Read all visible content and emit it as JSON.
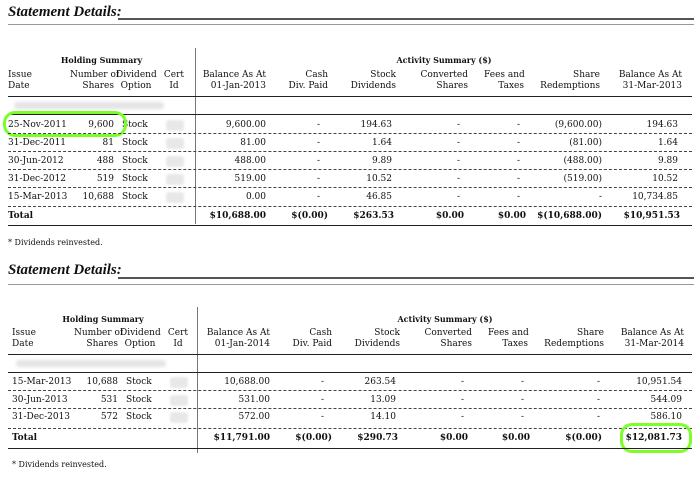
{
  "statements": [
    {
      "title": "Statement Details:",
      "group_holding": "Holding Summary",
      "group_activity": "Activity Summary ($)",
      "headers": {
        "issue": [
          "Issue",
          "Date"
        ],
        "shares": [
          "Number of",
          "Shares"
        ],
        "option": [
          "Dividend",
          "Option"
        ],
        "cert": [
          "Cert",
          "Id"
        ],
        "balance_start": [
          "Balance As At",
          "01-Jan-2013"
        ],
        "cash": [
          "Cash",
          "Div. Paid"
        ],
        "stock_div": [
          "Stock",
          "Dividends"
        ],
        "converted": [
          "Converted",
          "Shares"
        ],
        "fees": [
          "Fees and",
          "Taxes"
        ],
        "redemptions": [
          "Share",
          "Redemptions"
        ],
        "balance_end": [
          "Balance As At",
          "31-Mar-2013"
        ]
      },
      "rows": [
        {
          "date": "25-Nov-2011",
          "shares": "9,600",
          "option": "Stock",
          "balance_start": "9,600.00",
          "cash": "-",
          "stock_div": "194.63",
          "converted": "-",
          "fees": "-",
          "redemptions": "(9,600.00)",
          "balance_end": "194.63"
        },
        {
          "date": "31-Dec-2011",
          "shares": "81",
          "option": "Stock",
          "balance_start": "81.00",
          "cash": "-",
          "stock_div": "1.64",
          "converted": "-",
          "fees": "-",
          "redemptions": "(81.00)",
          "balance_end": "1.64"
        },
        {
          "date": "30-Jun-2012",
          "shares": "488",
          "option": "Stock",
          "balance_start": "488.00",
          "cash": "-",
          "stock_div": "9.89",
          "converted": "-",
          "fees": "-",
          "redemptions": "(488.00)",
          "balance_end": "9.89"
        },
        {
          "date": "31-Dec-2012",
          "shares": "519",
          "option": "Stock",
          "balance_start": "519.00",
          "cash": "-",
          "stock_div": "10.52",
          "converted": "-",
          "fees": "-",
          "redemptions": "(519.00)",
          "balance_end": "10.52"
        },
        {
          "date": "15-Mar-2013",
          "shares": "10,688",
          "option": "Stock",
          "balance_start": "0.00",
          "cash": "-",
          "stock_div": "46.85",
          "converted": "-",
          "fees": "-",
          "redemptions": "-",
          "balance_end": "10,734.85"
        }
      ],
      "total": {
        "label": "Total",
        "balance_start": "$10,688.00",
        "cash": "$(0.00)",
        "stock_div": "$263.53",
        "converted": "$0.00",
        "fees": "$0.00",
        "redemptions": "$(10,688.00)",
        "balance_end": "$10,951.53"
      },
      "footnote": "* Dividends reinvested."
    },
    {
      "title": "Statement Details:",
      "group_holding": "Holding Summary",
      "group_activity": "Activity Summary ($)",
      "headers": {
        "issue": [
          "Issue",
          "Date"
        ],
        "shares": [
          "Number of",
          "Shares"
        ],
        "option": [
          "Dividend",
          "Option"
        ],
        "cert": [
          "Cert",
          "Id"
        ],
        "balance_start": [
          "Balance As At",
          "01-Jan-2014"
        ],
        "cash": [
          "Cash",
          "Div. Paid"
        ],
        "stock_div": [
          "Stock",
          "Dividends"
        ],
        "converted": [
          "Converted",
          "Shares"
        ],
        "fees": [
          "Fees and",
          "Taxes"
        ],
        "redemptions": [
          "Share",
          "Redemptions"
        ],
        "balance_end": [
          "Balance As At",
          "31-Mar-2014"
        ]
      },
      "rows": [
        {
          "date": "15-Mar-2013",
          "shares": "10,688",
          "option": "Stock",
          "balance_start": "10,688.00",
          "cash": "-",
          "stock_div": "263.54",
          "converted": "-",
          "fees": "-",
          "redemptions": "-",
          "balance_end": "10,951.54"
        },
        {
          "date": "30-Jun-2013",
          "shares": "531",
          "option": "Stock",
          "balance_start": "531.00",
          "cash": "-",
          "stock_div": "13.09",
          "converted": "-",
          "fees": "-",
          "redemptions": "-",
          "balance_end": "544.09"
        },
        {
          "date": "31-Dec-2013",
          "shares": "572",
          "option": "Stock",
          "balance_start": "572.00",
          "cash": "-",
          "stock_div": "14.10",
          "converted": "-",
          "fees": "-",
          "redemptions": "-",
          "balance_end": "586.10"
        }
      ],
      "total": {
        "label": "Total",
        "balance_start": "$11,791.00",
        "cash": "$(0.00)",
        "stock_div": "$290.73",
        "converted": "$0.00",
        "fees": "$0.00",
        "redemptions": "$(0.00)",
        "balance_end": "$12,081.73"
      },
      "footnote": "* Dividends reinvested."
    }
  ],
  "colors": {
    "highlight": "#7cff28",
    "rule": "#222222"
  }
}
